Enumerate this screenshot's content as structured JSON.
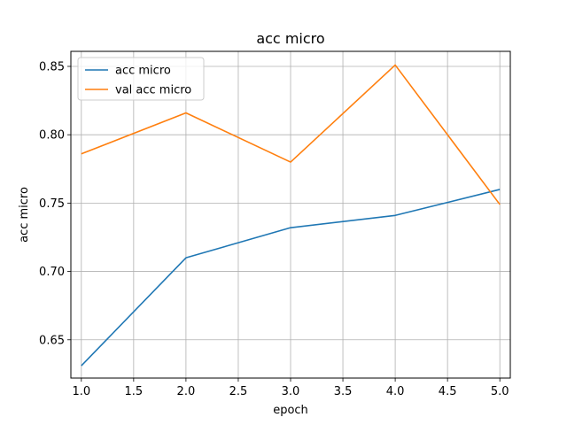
{
  "chart_data": {
    "type": "line",
    "title": "acc micro",
    "xlabel": "epoch",
    "ylabel": "acc micro",
    "xlim": [
      0.9,
      5.1
    ],
    "ylim": [
      0.622,
      0.861
    ],
    "x_ticks": [
      1.0,
      1.5,
      2.0,
      2.5,
      3.0,
      3.5,
      4.0,
      4.5,
      5.0
    ],
    "x_tick_labels": [
      "1.0",
      "1.5",
      "2.0",
      "2.5",
      "3.0",
      "3.5",
      "4.0",
      "4.5",
      "5.0"
    ],
    "y_ticks": [
      0.65,
      0.7,
      0.75,
      0.8,
      0.85
    ],
    "y_tick_labels": [
      "0.65",
      "0.70",
      "0.75",
      "0.80",
      "0.85"
    ],
    "grid": true,
    "legend_position": "top-left",
    "x": [
      1,
      2,
      3,
      4,
      5
    ],
    "series": [
      {
        "name": "acc micro",
        "color": "#1f77b4",
        "values": [
          0.631,
          0.71,
          0.732,
          0.741,
          0.76
        ]
      },
      {
        "name": "val acc micro",
        "color": "#ff7f0e",
        "values": [
          0.786,
          0.816,
          0.78,
          0.851,
          0.749
        ]
      }
    ]
  }
}
